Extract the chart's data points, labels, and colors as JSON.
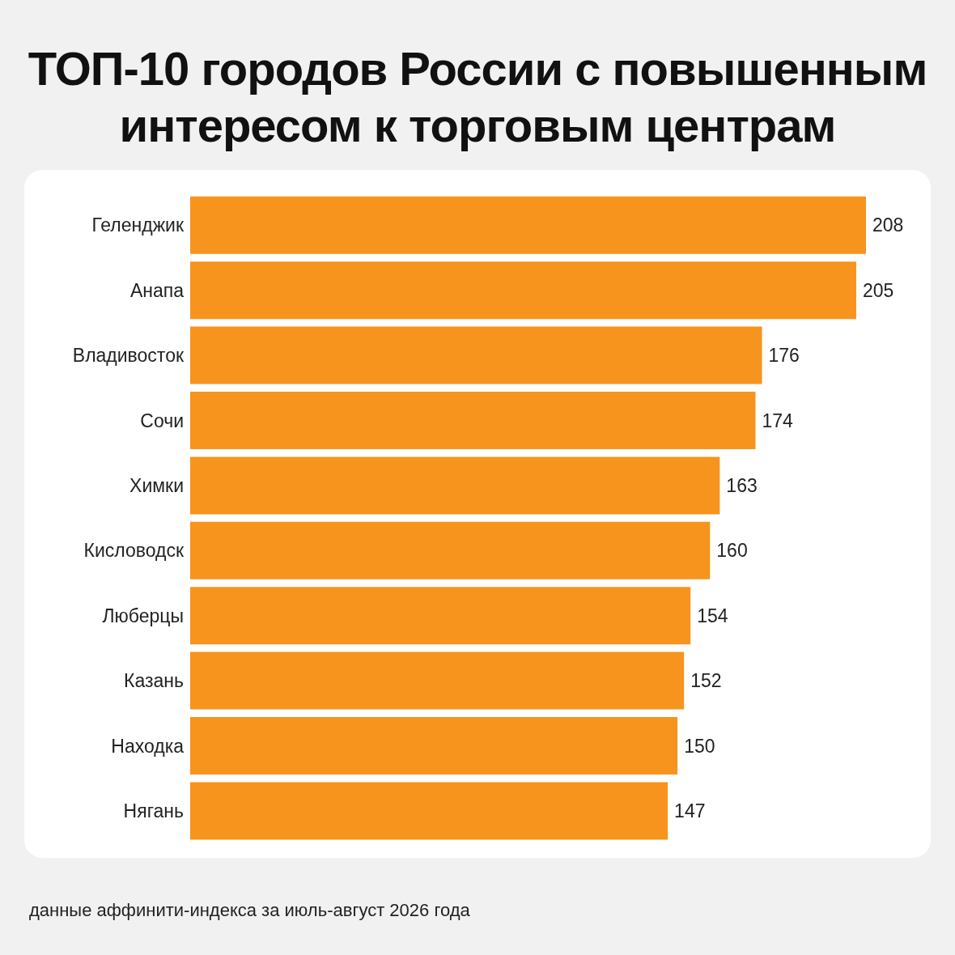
{
  "chart_data": {
    "type": "bar",
    "orientation": "horizontal",
    "title": "ТОП-10 городов России с повышенным интересом к торговым центрам",
    "categories": [
      "Геленджик",
      "Анапа",
      "Владивосток",
      "Сочи",
      "Химки",
      "Кисловодск",
      "Люберцы",
      "Казань",
      "Находка",
      "Нягань"
    ],
    "values": [
      208,
      205,
      176,
      174,
      163,
      160,
      154,
      152,
      150,
      147
    ],
    "color": "#f7941d",
    "data_labels": true,
    "annotations": [
      "данные аффинити-индекса за июль-август 2026 года"
    ]
  }
}
